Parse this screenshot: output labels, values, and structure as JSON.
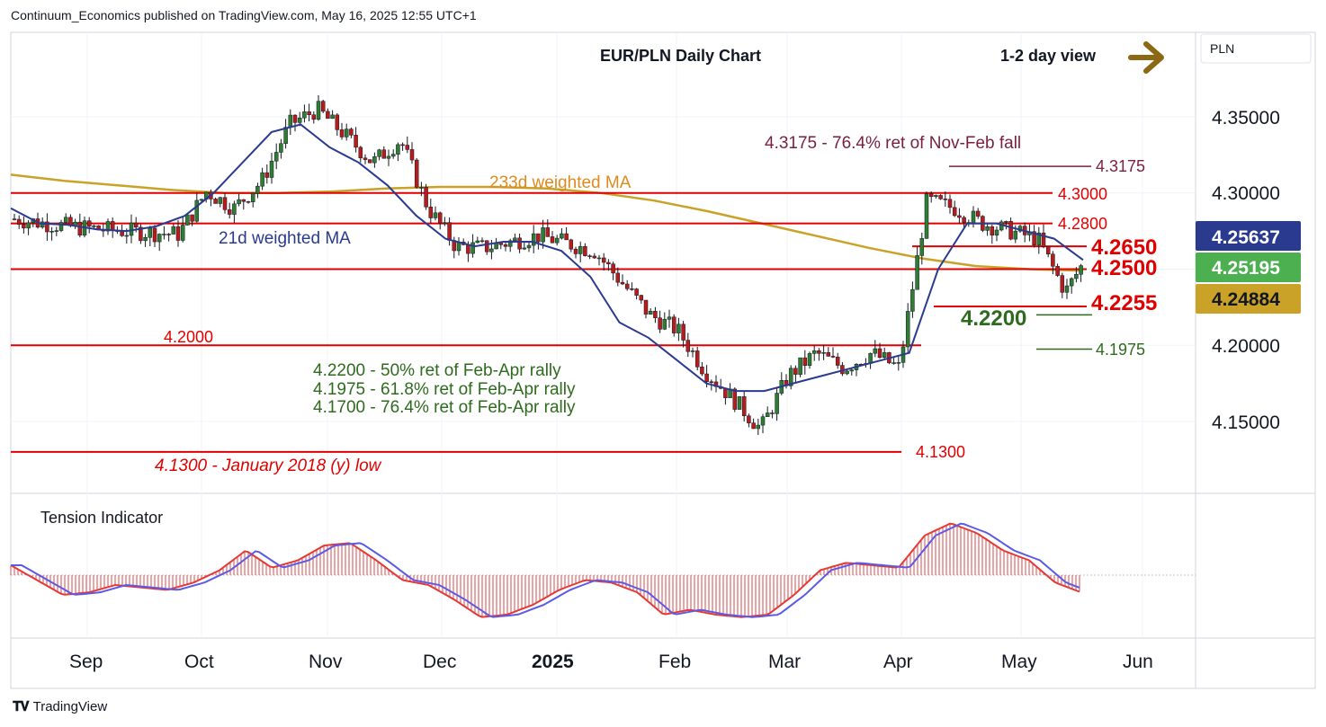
{
  "header": {
    "published": "Continuum_Economics published on TradingView.com, May 16, 2025 12:55 UTC+1"
  },
  "footer": {
    "brand": "TradingView"
  },
  "colors": {
    "up": "#2e7d32",
    "down": "#b71c1c",
    "level": "#e00000",
    "ma21": "#2a3a8f",
    "ma233": "#c9a227",
    "view_arrow": "#8b6914",
    "tension_fill": "#d94a4a",
    "tension_line_red": "#e53935",
    "tension_line_blue": "#5a5ae6",
    "badge_ma21": "#2a3a8f",
    "badge_last": "#4caf50",
    "badge_ma233": "#c9a227"
  },
  "chart": {
    "title": "EUR/PLN Daily Chart",
    "view_label": "1-2 day view",
    "view_direction": "sideways-right",
    "currency_label": "PLN",
    "x_ticks": [
      "Sep",
      "Oct",
      "Nov",
      "Dec",
      "2025",
      "Feb",
      "Mar",
      "Apr",
      "May",
      "Jun"
    ],
    "y_ticks": [
      "4.35000",
      "4.30000",
      "4.20000",
      "4.15000"
    ],
    "price_badges": [
      {
        "label": "4.25637",
        "value": 4.25637,
        "color": "#2a3a8f"
      },
      {
        "label": "4.25195",
        "value": 4.25195,
        "color": "#4caf50"
      },
      {
        "label": "4.24884",
        "value": 4.24884,
        "color": "#c9a227"
      }
    ],
    "level_labels": [
      {
        "text": "4.3175",
        "color": "#7a1f3d"
      },
      {
        "text": "4.3000",
        "color": "#e00000"
      },
      {
        "text": "4.2800",
        "color": "#e00000"
      },
      {
        "text": "4.2650",
        "color": "#e00000"
      },
      {
        "text": "4.2500",
        "color": "#e00000"
      },
      {
        "text": "4.2255",
        "color": "#e00000"
      },
      {
        "text": "4.2200",
        "color": "#2e6b1e"
      },
      {
        "text": "4.1975",
        "color": "#2e6b1e"
      },
      {
        "text": "4.2000",
        "color": "#e00000"
      },
      {
        "text": "4.1300",
        "color": "#e00000"
      }
    ],
    "annotations": {
      "ret_nov_feb": "4.3175 - 76.4% ret of Nov-Feb fall",
      "ma233_label": "233d weighted MA",
      "ma21_label": "21d weighted MA",
      "ret_lines": [
        "4.2200 - 50% ret of Feb-Apr rally",
        "4.1975 - 61.8% ret of Feb-Apr rally",
        "4.1700 - 76.4% ret of Feb-Apr rally"
      ],
      "jan2018_low": "4.1300 - January 2018 (y) low"
    },
    "tension_label": "Tension Indicator"
  },
  "chart_data": {
    "type": "candlestick",
    "title": "EUR/PLN Daily Chart",
    "instrument": "EUR/PLN",
    "timeframe": "Daily",
    "x_range": [
      "2024-08-19",
      "2025-05-16"
    ],
    "ylim": [
      4.115,
      4.375
    ],
    "close_path": [
      {
        "date": "2024-08-19",
        "close": 4.283
      },
      {
        "date": "2024-09-02",
        "close": 4.278
      },
      {
        "date": "2024-09-16",
        "close": 4.275
      },
      {
        "date": "2024-09-30",
        "close": 4.273
      },
      {
        "date": "2024-10-07",
        "close": 4.301
      },
      {
        "date": "2024-10-14",
        "close": 4.29
      },
      {
        "date": "2024-10-21",
        "close": 4.308
      },
      {
        "date": "2024-10-28",
        "close": 4.345
      },
      {
        "date": "2024-11-04",
        "close": 4.355
      },
      {
        "date": "2024-11-11",
        "close": 4.338
      },
      {
        "date": "2024-11-18",
        "close": 4.32
      },
      {
        "date": "2024-11-25",
        "close": 4.335
      },
      {
        "date": "2024-12-02",
        "close": 4.29
      },
      {
        "date": "2024-12-09",
        "close": 4.265
      },
      {
        "date": "2024-12-16",
        "close": 4.264
      },
      {
        "date": "2024-12-30",
        "close": 4.272
      },
      {
        "date": "2025-01-13",
        "close": 4.262
      },
      {
        "date": "2025-01-27",
        "close": 4.22
      },
      {
        "date": "2025-02-03",
        "close": 4.21
      },
      {
        "date": "2025-02-10",
        "close": 4.183
      },
      {
        "date": "2025-02-17",
        "close": 4.165
      },
      {
        "date": "2025-02-24",
        "close": 4.145
      },
      {
        "date": "2025-03-03",
        "close": 4.18
      },
      {
        "date": "2025-03-10",
        "close": 4.195
      },
      {
        "date": "2025-03-17",
        "close": 4.185
      },
      {
        "date": "2025-03-24",
        "close": 4.195
      },
      {
        "date": "2025-03-31",
        "close": 4.185
      },
      {
        "date": "2025-04-07",
        "close": 4.295
      },
      {
        "date": "2025-04-14",
        "close": 4.29
      },
      {
        "date": "2025-04-21",
        "close": 4.28
      },
      {
        "date": "2025-04-28",
        "close": 4.275
      },
      {
        "date": "2025-05-05",
        "close": 4.27
      },
      {
        "date": "2025-05-12",
        "close": 4.235
      },
      {
        "date": "2025-05-16",
        "close": 4.2519
      }
    ],
    "last_price": 4.25195,
    "ma21_last": 4.25637,
    "ma233_last": 4.24884,
    "ma21_path": [
      4.29,
      4.28,
      4.279,
      4.276,
      4.275,
      4.278,
      4.285,
      4.3,
      4.32,
      4.34,
      4.345,
      4.33,
      4.32,
      4.305,
      4.285,
      4.27,
      4.265,
      4.268,
      4.268,
      4.262,
      4.245,
      4.215,
      4.205,
      4.19,
      4.175,
      4.17,
      4.17,
      4.175,
      4.18,
      4.185,
      4.19,
      4.195,
      4.25,
      4.28,
      4.28,
      4.275,
      4.27,
      4.256
    ],
    "ma233_path": [
      4.312,
      4.308,
      4.305,
      4.302,
      4.3,
      4.3,
      4.301,
      4.303,
      4.304,
      4.304,
      4.303,
      4.3,
      4.295,
      4.288,
      4.28,
      4.272,
      4.264,
      4.257,
      4.252,
      4.25,
      4.249
    ],
    "horizontal_levels": [
      4.3175,
      4.3,
      4.28,
      4.265,
      4.25,
      4.2255,
      4.22,
      4.1975,
      4.2,
      4.13
    ],
    "tension_indicator": [
      0.2,
      -0.1,
      -0.4,
      -0.35,
      -0.2,
      -0.25,
      -0.3,
      -0.15,
      0.1,
      0.5,
      0.15,
      0.3,
      0.6,
      0.65,
      0.3,
      -0.1,
      -0.2,
      -0.5,
      -0.85,
      -0.8,
      -0.6,
      -0.3,
      -0.1,
      -0.15,
      -0.35,
      -0.8,
      -0.7,
      -0.8,
      -0.85,
      -0.8,
      -0.4,
      0.1,
      0.25,
      0.2,
      0.15,
      0.8,
      1.05,
      0.85,
      0.5,
      0.3,
      -0.15,
      -0.35
    ]
  }
}
